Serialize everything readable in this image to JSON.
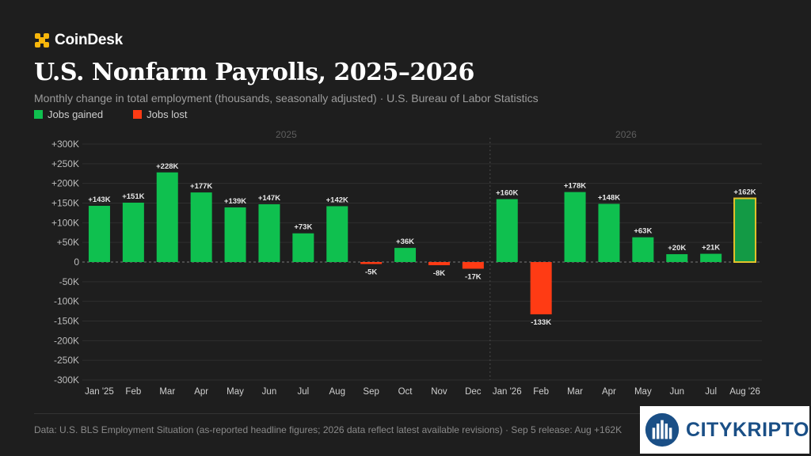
{
  "brand": {
    "name": "CoinDesk"
  },
  "header": {
    "title": "U.S. Nonfarm Payrolls, 2025–2026",
    "subtitle": "Monthly change in total employment (thousands, seasonally adjusted) · U.S. Bureau of Labor Statistics"
  },
  "legend": {
    "gained": {
      "label": "Jobs gained",
      "color": "#0fc04f"
    },
    "lost": {
      "label": "Jobs lost",
      "color": "#ff3b14"
    }
  },
  "footer": {
    "note": "Data: U.S. BLS Employment Situation (as-reported headline figures; 2026 data reflect latest available revisions) · Sep 5 release: Aug +162K"
  },
  "watermark": {
    "text": "CITYKRIPTO"
  },
  "chart_data": {
    "type": "bar",
    "title": "U.S. Nonfarm Payrolls, 2025–2026",
    "subtitle": "Monthly change in total employment (thousands, seasonally adjusted) · U.S. Bureau of Labor Statistics",
    "ylim": [
      -300,
      300
    ],
    "yticks": [
      300,
      250,
      200,
      150,
      100,
      50,
      0,
      -50,
      -100,
      -150,
      -200,
      -250,
      -300
    ],
    "ytick_labels": [
      "+300K",
      "+250K",
      "+200K",
      "+150K",
      "+100K",
      "+50K",
      "0",
      "-50K",
      "-100K",
      "-150K",
      "-200K",
      "-250K",
      "-300K"
    ],
    "grid": true,
    "legend_position": "top-left",
    "groups": [
      {
        "label": "2025",
        "start": 0,
        "end": 11
      },
      {
        "label": "2026",
        "start": 12,
        "end": 19
      }
    ],
    "categories": [
      "Jan '25",
      "Feb",
      "Mar",
      "Apr",
      "May",
      "Jun",
      "Jul",
      "Aug",
      "Sep",
      "Oct",
      "Nov",
      "Dec",
      "Jan '26",
      "Feb",
      "Mar",
      "Apr",
      "May",
      "Jun",
      "Jul",
      "Aug '26"
    ],
    "values": [
      143,
      151,
      228,
      177,
      139,
      147,
      73,
      142,
      -5,
      36,
      -8,
      -17,
      160,
      -133,
      178,
      148,
      63,
      20,
      21,
      162
    ],
    "data_labels": [
      "+143K",
      "+151K",
      "+228K",
      "+177K",
      "+139K",
      "+147K",
      "+73K",
      "+142K",
      "-5K",
      "+36K",
      "-8K",
      "-17K",
      "+160K",
      "-133K",
      "+178K",
      "+148K",
      "+63K",
      "+20K",
      "+21K",
      "+162K"
    ],
    "highlight_index": 19,
    "colors": {
      "positive": "#0fc04f",
      "negative": "#ff3b14",
      "highlight_fill": "#139a45",
      "highlight_border": "#e4c22a"
    }
  }
}
